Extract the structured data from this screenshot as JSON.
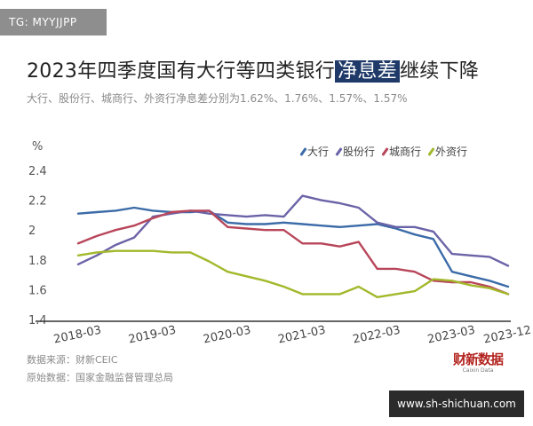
{
  "tag": "TG: MYYJJPP",
  "title_parts": {
    "pre": "2023年四季度国有大行等四类银行",
    "highlight": "净息差",
    "post": "继续下降"
  },
  "subtitle": "大行、股份行、城商行、外资行净息差分别为1.62%、1.76%、1.57%、1.57%",
  "chart_data": {
    "type": "line",
    "title": "2023年四季度国有大行等四类银行净息差继续下降",
    "subtitle": "大行、股份行、城商行、外资行净息差分别为1.62%、1.76%、1.57%、1.57%",
    "unit_label": "%",
    "ylim": [
      1.4,
      2.4
    ],
    "yticks": [
      "1.4",
      "1.6",
      "1.8",
      "2",
      "2.2",
      "2.4"
    ],
    "x_tick_labels": [
      "2018-03",
      "2019-03",
      "2020-03",
      "2021-03",
      "2022-03",
      "2023-03",
      "2023-12"
    ],
    "x": [
      "2018-03",
      "2018-06",
      "2018-09",
      "2018-12",
      "2019-03",
      "2019-06",
      "2019-09",
      "2019-12",
      "2020-03",
      "2020-06",
      "2020-09",
      "2020-12",
      "2021-03",
      "2021-06",
      "2021-09",
      "2021-12",
      "2022-03",
      "2022-06",
      "2022-09",
      "2022-12",
      "2023-03",
      "2023-06",
      "2023-09",
      "2023-12"
    ],
    "series": [
      {
        "name": "大行",
        "color": "#3b6ba8",
        "values": [
          2.11,
          2.12,
          2.13,
          2.15,
          2.13,
          2.12,
          2.12,
          2.13,
          2.05,
          2.04,
          2.04,
          2.05,
          2.04,
          2.03,
          2.02,
          2.03,
          2.04,
          2.01,
          1.97,
          1.94,
          1.72,
          1.69,
          1.66,
          1.62
        ]
      },
      {
        "name": "股份行",
        "color": "#6a63a7",
        "values": [
          1.77,
          1.83,
          1.9,
          1.95,
          2.09,
          2.11,
          2.13,
          2.11,
          2.1,
          2.09,
          2.1,
          2.09,
          2.23,
          2.2,
          2.18,
          2.15,
          2.05,
          2.02,
          2.02,
          1.99,
          1.84,
          1.83,
          1.82,
          1.76
        ]
      },
      {
        "name": "城商行",
        "color": "#b8465a",
        "values": [
          1.91,
          1.96,
          2.0,
          2.03,
          2.08,
          2.12,
          2.13,
          2.13,
          2.02,
          2.01,
          2.0,
          2.0,
          1.91,
          1.91,
          1.89,
          1.92,
          1.74,
          1.74,
          1.72,
          1.66,
          1.65,
          1.65,
          1.62,
          1.57
        ]
      },
      {
        "name": "外资行",
        "color": "#a3b82b",
        "values": [
          1.83,
          1.85,
          1.86,
          1.86,
          1.86,
          1.85,
          1.85,
          1.79,
          1.72,
          1.69,
          1.66,
          1.62,
          1.57,
          1.57,
          1.57,
          1.62,
          1.55,
          1.57,
          1.59,
          1.67,
          1.66,
          1.63,
          1.61,
          1.57
        ]
      }
    ]
  },
  "source_line1": "数据来源：财新CEIC",
  "source_line2": "原始数据：国家金融监督管理总局",
  "logo_text": "财新数据",
  "logo_sub": "Caixin Data",
  "watermark": "www.sh-shichuan.com"
}
